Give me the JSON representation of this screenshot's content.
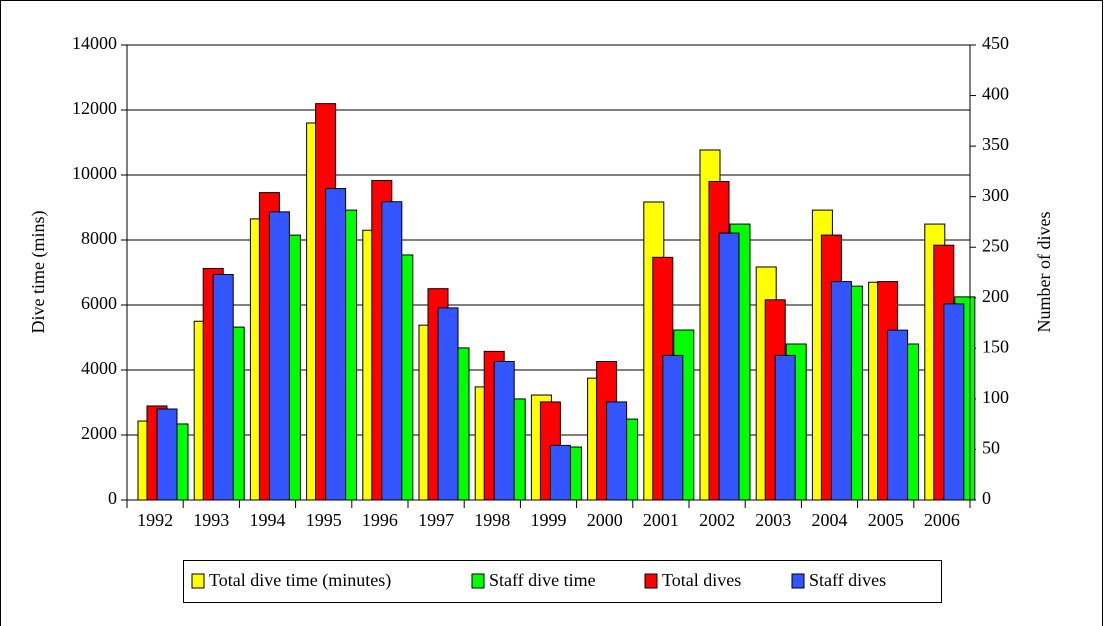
{
  "chart_data": {
    "type": "bar",
    "categories": [
      "1992",
      "1993",
      "1994",
      "1995",
      "1996",
      "1997",
      "1998",
      "1999",
      "2000",
      "2001",
      "2002",
      "2003",
      "2004",
      "2005",
      "2006"
    ],
    "series": [
      {
        "name": "Total dive time (minutes)",
        "color": "#ffff00",
        "values": [
          2430,
          5500,
          8650,
          11600,
          8300,
          5380,
          3480,
          3230,
          3750,
          9170,
          10770,
          7170,
          8920,
          6700,
          8490
        ]
      },
      {
        "name": "Staff dive time",
        "color": "#00ff00",
        "values": [
          2340,
          5320,
          8150,
          8920,
          7540,
          4680,
          3110,
          1630,
          2490,
          5230,
          8490,
          4800,
          6580,
          4800,
          6250
        ]
      },
      {
        "name": "Total dives",
        "color": "#ff0000",
        "axis": "y2",
        "values": [
          93,
          229,
          304,
          392,
          316,
          209,
          147,
          97,
          137,
          240,
          315,
          198,
          262,
          216,
          252
        ]
      },
      {
        "name": "Staff dives",
        "color": "#3355ff",
        "axis": "y2",
        "values": [
          90,
          223,
          285,
          308,
          295,
          190,
          137,
          54,
          97,
          143,
          264,
          143,
          216,
          168,
          194
        ]
      }
    ],
    "ylabel": "Dive time (mins)",
    "y2label": "Number of dives",
    "ylim": [
      0,
      14000
    ],
    "yticks": [
      0,
      2000,
      4000,
      6000,
      8000,
      10000,
      12000,
      14000
    ],
    "y2lim": [
      0,
      450
    ],
    "y2ticks": [
      0,
      50,
      100,
      150,
      200,
      250,
      300,
      350,
      400,
      450
    ],
    "grid": true,
    "legend": "bottom"
  }
}
